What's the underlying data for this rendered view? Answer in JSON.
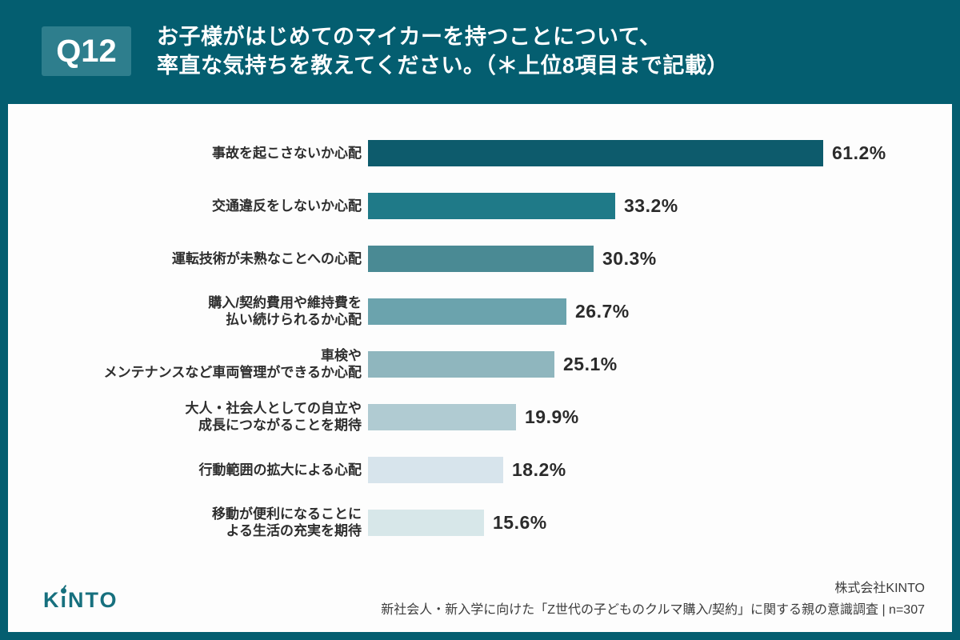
{
  "header": {
    "badge": "Q12",
    "title_line1": "お子様がはじめてのマイカーを持つことについて、",
    "title_line2": "率直な気持ちを教えてください。（＊上位8項目まで記載）"
  },
  "chart_data": {
    "type": "bar",
    "orientation": "horizontal",
    "title": "お子様がはじめてのマイカーを持つことについて、率直な気持ちを教えてください。（＊上位8項目まで記載）",
    "categories": [
      "事故を起こさないか心配",
      "交通違反をしないか心配",
      "運転技術が未熟なことへの心配",
      "購入/契約費用や維持費を払い続けられるか心配",
      "車検やメンテナンスなど車両管理ができるか心配",
      "大人・社会人としての自立や成長につながることを期待",
      "行動範囲の拡大による心配",
      "移動が便利になることによる生活の充実を期待"
    ],
    "categories_lines": [
      [
        "事故を起こさないか心配"
      ],
      [
        "交通違反をしないか心配"
      ],
      [
        "運転技術が未熟なことへの心配"
      ],
      [
        "購入/契約費用や維持費を",
        "払い続けられるか心配"
      ],
      [
        "車検や",
        "メンテナンスなど車両管理ができるか心配"
      ],
      [
        "大人・社会人としての自立や",
        "成長につながることを期待"
      ],
      [
        "行動範囲の拡大による心配"
      ],
      [
        "移動が便利になることに",
        "よる生活の充実を期待"
      ]
    ],
    "values": [
      61.2,
      33.2,
      30.3,
      26.7,
      25.1,
      19.9,
      18.2,
      15.6
    ],
    "value_labels": [
      "61.2%",
      "33.2%",
      "30.3%",
      "26.7%",
      "25.1%",
      "19.9%",
      "18.2%",
      "15.6%"
    ],
    "value_suffix": "%",
    "bar_colors": [
      "#0d5b6c",
      "#1f7a88",
      "#4a8a94",
      "#6ba3ad",
      "#8fb6be",
      "#b0cbd2",
      "#d7e4ec",
      "#d7e7e9"
    ],
    "xlim": [
      0,
      65
    ],
    "grid": false,
    "legend": false,
    "value_labels_position": "end-of-bar"
  },
  "footer": {
    "logo": "KINTO",
    "company": "株式会社KINTO",
    "survey": "新社会人・新入学に向けた「Z世代の子どものクルマ購入/契約」に関する親の意識調査 | n=307"
  },
  "colors": {
    "page_background": "#045e70",
    "badge_background": "#2e7e8d",
    "card_background": "#fdfdfd",
    "title_text": "#ffffff",
    "label_text": "#2e2e2e",
    "logo_teal": "#17707e"
  }
}
